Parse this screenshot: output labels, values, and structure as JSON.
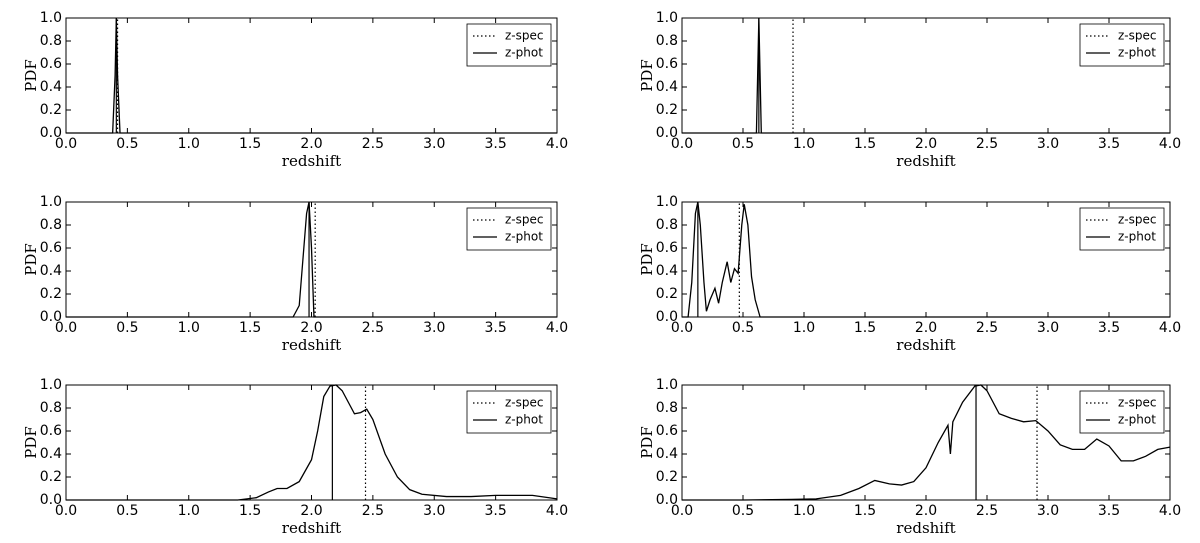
{
  "chart_data": [
    {
      "type": "line",
      "xlabel": "redshift",
      "ylabel": "PDF",
      "xlim": [
        0,
        4
      ],
      "ylim": [
        0,
        1
      ],
      "xticks": [
        {
          "value": 0,
          "label": "0.0"
        },
        {
          "value": 0.5,
          "label": "0.5"
        },
        {
          "value": 1,
          "label": "1.0"
        },
        {
          "value": 1.5,
          "label": "1.5"
        },
        {
          "value": 2,
          "label": "2.0"
        },
        {
          "value": 2.5,
          "label": "2.5"
        },
        {
          "value": 3,
          "label": "3.0"
        },
        {
          "value": 3.5,
          "label": "3.5"
        },
        {
          "value": 4,
          "label": "4.0"
        }
      ],
      "yticks": [
        {
          "value": 0,
          "label": "0.0"
        },
        {
          "value": 0.2,
          "label": "0.2"
        },
        {
          "value": 0.4,
          "label": "0.4"
        },
        {
          "value": 0.6,
          "label": "0.6"
        },
        {
          "value": 0.8,
          "label": "0.8"
        },
        {
          "value": 1,
          "label": "1.0"
        }
      ],
      "legend": "upper right",
      "series": [
        {
          "name": "z-spec",
          "color": "#000000",
          "linestyle": "dotted",
          "x": [
            0.42,
            0.42
          ],
          "values": [
            0,
            1
          ]
        },
        {
          "name": "z-phot",
          "color": "#000000",
          "linestyle": "solid",
          "x": [
            0.41,
            0.41
          ],
          "values": [
            0,
            1
          ]
        }
      ],
      "pdf": {
        "color": "#000000",
        "x": [
          0,
          0.38,
          0.4,
          0.41,
          0.42,
          0.44,
          4
        ],
        "values": [
          0,
          0,
          0.5,
          1,
          0.5,
          0,
          0
        ]
      }
    },
    {
      "type": "line",
      "xlabel": "redshift",
      "ylabel": "PDF",
      "xlim": [
        0,
        4
      ],
      "ylim": [
        0,
        1
      ],
      "xticks": [
        {
          "value": 0,
          "label": "0.0"
        },
        {
          "value": 0.5,
          "label": "0.5"
        },
        {
          "value": 1,
          "label": "1.0"
        },
        {
          "value": 1.5,
          "label": "1.5"
        },
        {
          "value": 2,
          "label": "2.0"
        },
        {
          "value": 2.5,
          "label": "2.5"
        },
        {
          "value": 3,
          "label": "3.0"
        },
        {
          "value": 3.5,
          "label": "3.5"
        },
        {
          "value": 4,
          "label": "4.0"
        }
      ],
      "yticks": [
        {
          "value": 0,
          "label": "0.0"
        },
        {
          "value": 0.2,
          "label": "0.2"
        },
        {
          "value": 0.4,
          "label": "0.4"
        },
        {
          "value": 0.6,
          "label": "0.6"
        },
        {
          "value": 0.8,
          "label": "0.8"
        },
        {
          "value": 1,
          "label": "1.0"
        }
      ],
      "legend": "upper right",
      "series": [
        {
          "name": "z-spec",
          "color": "#000000",
          "linestyle": "dotted",
          "x": [
            0.91,
            0.91
          ],
          "values": [
            0,
            1
          ]
        },
        {
          "name": "z-phot",
          "color": "#000000",
          "linestyle": "solid",
          "x": [
            0.63,
            0.63
          ],
          "values": [
            0,
            1
          ]
        }
      ],
      "pdf": {
        "color": "#000000",
        "x": [
          0,
          0.61,
          0.63,
          0.65,
          4
        ],
        "values": [
          0,
          0,
          1,
          0,
          0
        ]
      }
    },
    {
      "type": "line",
      "xlabel": "redshift",
      "ylabel": "PDF",
      "xlim": [
        0,
        4
      ],
      "ylim": [
        0,
        1
      ],
      "xticks": [
        {
          "value": 0,
          "label": "0.0"
        },
        {
          "value": 0.5,
          "label": "0.5"
        },
        {
          "value": 1,
          "label": "1.0"
        },
        {
          "value": 1.5,
          "label": "1.5"
        },
        {
          "value": 2,
          "label": "2.0"
        },
        {
          "value": 2.5,
          "label": "2.5"
        },
        {
          "value": 3,
          "label": "3.0"
        },
        {
          "value": 3.5,
          "label": "3.5"
        },
        {
          "value": 4,
          "label": "4.0"
        }
      ],
      "yticks": [
        {
          "value": 0,
          "label": "0.0"
        },
        {
          "value": 0.2,
          "label": "0.2"
        },
        {
          "value": 0.4,
          "label": "0.4"
        },
        {
          "value": 0.6,
          "label": "0.6"
        },
        {
          "value": 0.8,
          "label": "0.8"
        },
        {
          "value": 1,
          "label": "1.0"
        }
      ],
      "legend": "upper right",
      "series": [
        {
          "name": "z-spec",
          "color": "#000000",
          "linestyle": "dotted",
          "x": [
            2.03,
            2.03
          ],
          "values": [
            0,
            1
          ]
        },
        {
          "name": "z-phot",
          "color": "#000000",
          "linestyle": "solid",
          "x": [
            1.98,
            1.98
          ],
          "values": [
            0,
            1
          ]
        }
      ],
      "pdf": {
        "color": "#000000",
        "x": [
          0,
          1.85,
          1.9,
          1.93,
          1.96,
          1.98,
          2.0,
          2.02,
          4
        ],
        "values": [
          0,
          0,
          0.1,
          0.5,
          0.9,
          1,
          0.6,
          0,
          0
        ]
      }
    },
    {
      "type": "line",
      "xlabel": "redshift",
      "ylabel": "PDF",
      "xlim": [
        0,
        4
      ],
      "ylim": [
        0,
        1
      ],
      "xticks": [
        {
          "value": 0,
          "label": "0.0"
        },
        {
          "value": 0.5,
          "label": "0.5"
        },
        {
          "value": 1,
          "label": "1.0"
        },
        {
          "value": 1.5,
          "label": "1.5"
        },
        {
          "value": 2,
          "label": "2.0"
        },
        {
          "value": 2.5,
          "label": "2.5"
        },
        {
          "value": 3,
          "label": "3.0"
        },
        {
          "value": 3.5,
          "label": "3.5"
        },
        {
          "value": 4,
          "label": "4.0"
        }
      ],
      "yticks": [
        {
          "value": 0,
          "label": "0.0"
        },
        {
          "value": 0.2,
          "label": "0.2"
        },
        {
          "value": 0.4,
          "label": "0.4"
        },
        {
          "value": 0.6,
          "label": "0.6"
        },
        {
          "value": 0.8,
          "label": "0.8"
        },
        {
          "value": 1,
          "label": "1.0"
        }
      ],
      "legend": "upper right",
      "series": [
        {
          "name": "z-spec",
          "color": "#000000",
          "linestyle": "dotted",
          "x": [
            0.47,
            0.47
          ],
          "values": [
            0,
            1
          ]
        },
        {
          "name": "z-phot",
          "color": "#000000",
          "linestyle": "solid",
          "x": [
            0.13,
            0.13
          ],
          "values": [
            0,
            1
          ]
        }
      ],
      "pdf": {
        "color": "#000000",
        "x": [
          0,
          0.05,
          0.08,
          0.11,
          0.13,
          0.15,
          0.18,
          0.2,
          0.23,
          0.27,
          0.3,
          0.33,
          0.37,
          0.4,
          0.43,
          0.46,
          0.49,
          0.51,
          0.54,
          0.57,
          0.6,
          0.64,
          4
        ],
        "values": [
          0,
          0,
          0.3,
          0.9,
          1,
          0.8,
          0.3,
          0.05,
          0.15,
          0.25,
          0.12,
          0.3,
          0.48,
          0.3,
          0.42,
          0.38,
          0.8,
          0.98,
          0.8,
          0.35,
          0.15,
          0,
          0
        ]
      }
    },
    {
      "type": "line",
      "xlabel": "redshift",
      "ylabel": "PDF",
      "xlim": [
        0,
        4
      ],
      "ylim": [
        0,
        1
      ],
      "xticks": [
        {
          "value": 0,
          "label": "0.0"
        },
        {
          "value": 0.5,
          "label": "0.5"
        },
        {
          "value": 1,
          "label": "1.0"
        },
        {
          "value": 1.5,
          "label": "1.5"
        },
        {
          "value": 2,
          "label": "2.0"
        },
        {
          "value": 2.5,
          "label": "2.5"
        },
        {
          "value": 3,
          "label": "3.0"
        },
        {
          "value": 3.5,
          "label": "3.5"
        },
        {
          "value": 4,
          "label": "4.0"
        }
      ],
      "yticks": [
        {
          "value": 0,
          "label": "0.0"
        },
        {
          "value": 0.2,
          "label": "0.2"
        },
        {
          "value": 0.4,
          "label": "0.4"
        },
        {
          "value": 0.6,
          "label": "0.6"
        },
        {
          "value": 0.8,
          "label": "0.8"
        },
        {
          "value": 1,
          "label": "1.0"
        }
      ],
      "legend": "upper right",
      "series": [
        {
          "name": "z-spec",
          "color": "#000000",
          "linestyle": "dotted",
          "x": [
            2.44,
            2.44
          ],
          "values": [
            0,
            1
          ]
        },
        {
          "name": "z-phot",
          "color": "#000000",
          "linestyle": "solid",
          "x": [
            2.17,
            2.17
          ],
          "values": [
            0,
            1
          ]
        }
      ],
      "pdf": {
        "color": "#000000",
        "x": [
          0,
          1.4,
          1.55,
          1.65,
          1.72,
          1.8,
          1.9,
          2.0,
          2.05,
          2.1,
          2.15,
          2.2,
          2.25,
          2.3,
          2.35,
          2.4,
          2.45,
          2.5,
          2.6,
          2.7,
          2.8,
          2.9,
          3.1,
          3.3,
          3.5,
          3.8,
          4.0
        ],
        "values": [
          0,
          0,
          0.02,
          0.07,
          0.1,
          0.1,
          0.16,
          0.35,
          0.6,
          0.9,
          0.99,
          1,
          0.95,
          0.85,
          0.75,
          0.76,
          0.79,
          0.7,
          0.4,
          0.2,
          0.09,
          0.05,
          0.03,
          0.03,
          0.04,
          0.04,
          0.01
        ]
      }
    },
    {
      "type": "line",
      "xlabel": "redshift",
      "ylabel": "PDF",
      "xlim": [
        0,
        4
      ],
      "ylim": [
        0,
        1
      ],
      "xticks": [
        {
          "value": 0,
          "label": "0.0"
        },
        {
          "value": 0.5,
          "label": "0.5"
        },
        {
          "value": 1,
          "label": "1.0"
        },
        {
          "value": 1.5,
          "label": "1.5"
        },
        {
          "value": 2,
          "label": "2.0"
        },
        {
          "value": 2.5,
          "label": "2.5"
        },
        {
          "value": 3,
          "label": "3.0"
        },
        {
          "value": 3.5,
          "label": "3.5"
        },
        {
          "value": 4,
          "label": "4.0"
        }
      ],
      "yticks": [
        {
          "value": 0,
          "label": "0.0"
        },
        {
          "value": 0.2,
          "label": "0.2"
        },
        {
          "value": 0.4,
          "label": "0.4"
        },
        {
          "value": 0.6,
          "label": "0.6"
        },
        {
          "value": 0.8,
          "label": "0.8"
        },
        {
          "value": 1,
          "label": "1.0"
        }
      ],
      "legend": "upper right",
      "series": [
        {
          "name": "z-spec",
          "color": "#000000",
          "linestyle": "dotted",
          "x": [
            2.91,
            2.91
          ],
          "values": [
            0,
            1
          ]
        },
        {
          "name": "z-phot",
          "color": "#000000",
          "linestyle": "solid",
          "x": [
            2.41,
            2.41
          ],
          "values": [
            0,
            1
          ]
        }
      ],
      "pdf": {
        "color": "#000000",
        "x": [
          0,
          0.5,
          0.9,
          1.1,
          1.3,
          1.45,
          1.58,
          1.7,
          1.8,
          1.9,
          2.0,
          2.1,
          2.18,
          2.2,
          2.22,
          2.3,
          2.4,
          2.45,
          2.5,
          2.6,
          2.7,
          2.8,
          2.9,
          3.0,
          3.1,
          3.2,
          3.3,
          3.4,
          3.5,
          3.6,
          3.7,
          3.8,
          3.9,
          4.0
        ],
        "values": [
          0,
          0,
          0.005,
          0.01,
          0.04,
          0.1,
          0.17,
          0.14,
          0.13,
          0.16,
          0.28,
          0.5,
          0.65,
          0.4,
          0.68,
          0.85,
          0.99,
          1,
          0.95,
          0.75,
          0.71,
          0.68,
          0.69,
          0.6,
          0.48,
          0.44,
          0.44,
          0.53,
          0.47,
          0.34,
          0.34,
          0.38,
          0.44,
          0.46
        ]
      }
    }
  ]
}
